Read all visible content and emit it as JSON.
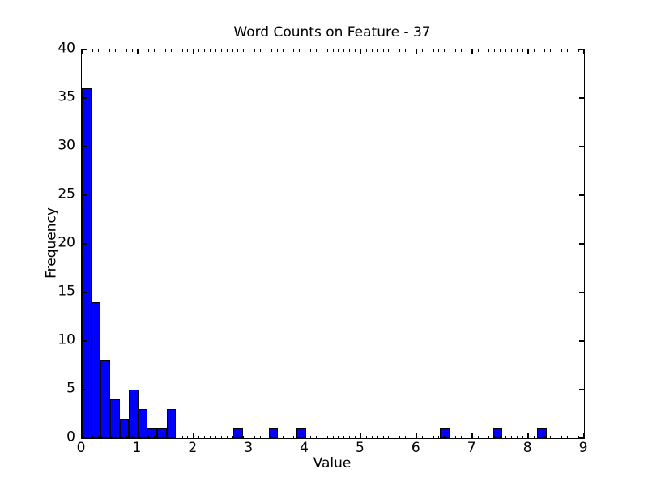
{
  "figure": {
    "background": "#ffffff",
    "foreground": "#000000"
  },
  "chart_data": {
    "type": "bar",
    "subtype": "histogram",
    "title": "Word Counts on Feature - 37",
    "xlabel": "Value",
    "ylabel": "Frequency",
    "xlim": [
      0,
      9
    ],
    "ylim": [
      0,
      40
    ],
    "xticks": [
      0,
      1,
      2,
      3,
      4,
      5,
      6,
      7,
      8,
      9
    ],
    "yticks": [
      0,
      5,
      10,
      15,
      20,
      25,
      30,
      35,
      40
    ],
    "x_minor_tick_step": 0.1,
    "grid": false,
    "legend": null,
    "bar_width": 0.169,
    "bar_color": "#0000ff",
    "bar_edge_color": "#000000",
    "bars": [
      {
        "x": 0.0,
        "h": 36
      },
      {
        "x": 0.169,
        "h": 14
      },
      {
        "x": 0.338,
        "h": 8
      },
      {
        "x": 0.507,
        "h": 4
      },
      {
        "x": 0.676,
        "h": 2
      },
      {
        "x": 0.845,
        "h": 5
      },
      {
        "x": 1.014,
        "h": 3
      },
      {
        "x": 1.183,
        "h": 1
      },
      {
        "x": 1.352,
        "h": 1
      },
      {
        "x": 1.521,
        "h": 3
      },
      {
        "x": 2.72,
        "h": 1
      },
      {
        "x": 3.35,
        "h": 1
      },
      {
        "x": 3.85,
        "h": 1
      },
      {
        "x": 6.42,
        "h": 1
      },
      {
        "x": 7.37,
        "h": 1
      },
      {
        "x": 8.16,
        "h": 1
      }
    ]
  }
}
